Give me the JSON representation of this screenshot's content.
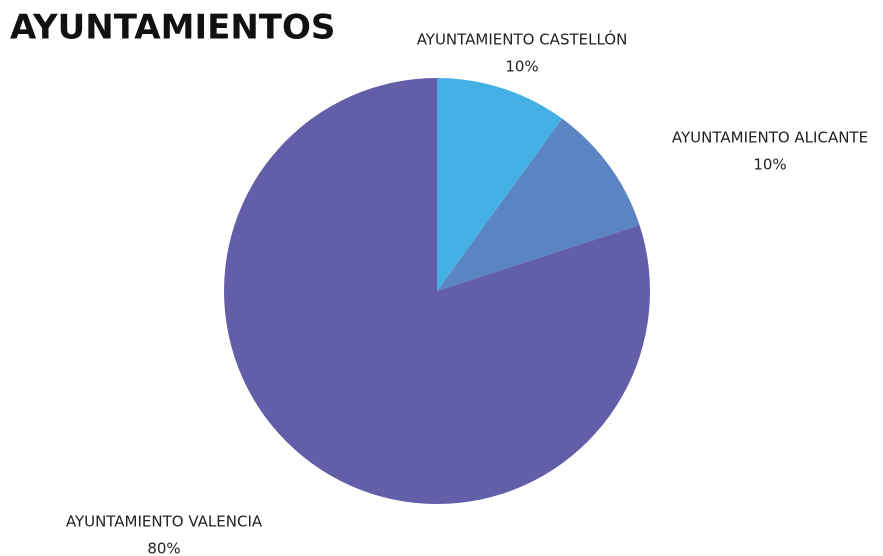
{
  "chart_data": {
    "type": "pie",
    "title": "AYUNTAMIENTOS",
    "categories": [
      "AYUNTAMIENTO CASTELLÓN",
      "AYUNTAMIENTO ALICANTE",
      "AYUNTAMIENTO VALENCIA"
    ],
    "values": [
      10,
      10,
      80
    ],
    "value_labels": [
      "10%",
      "10%",
      "80%"
    ],
    "colors": [
      "#45b0e3",
      "#5a84c4",
      "#635ea8"
    ]
  }
}
